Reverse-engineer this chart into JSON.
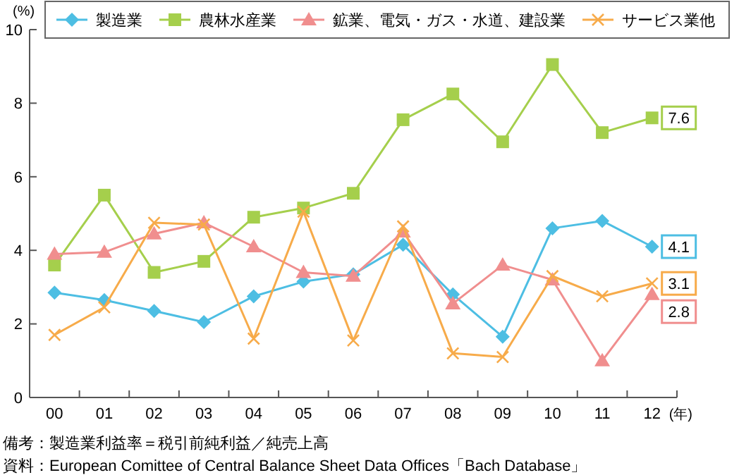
{
  "chart_data": {
    "type": "line",
    "ylabel": "(%)",
    "xlabel": "(年)",
    "categories": [
      "00",
      "01",
      "02",
      "03",
      "04",
      "05",
      "06",
      "07",
      "08",
      "09",
      "10",
      "11",
      "12"
    ],
    "ylim": [
      0,
      10
    ],
    "yticks": [
      0,
      2,
      4,
      6,
      8,
      10
    ],
    "grid": false,
    "legend": "top",
    "line_style": "solid",
    "series": [
      {
        "name": "製造業",
        "color": "#4dbee3",
        "marker": "diamond",
        "values": [
          2.85,
          2.65,
          2.35,
          2.05,
          2.75,
          3.15,
          3.35,
          4.15,
          2.8,
          1.65,
          4.6,
          4.8,
          4.1
        ],
        "value_labels": [
          null,
          null,
          null,
          null,
          null,
          null,
          null,
          null,
          null,
          null,
          null,
          null,
          "4.1"
        ]
      },
      {
        "name": "農林水産業",
        "color": "#a5cf4c",
        "marker": "square",
        "values": [
          3.6,
          5.5,
          3.4,
          3.7,
          4.9,
          5.15,
          5.55,
          7.55,
          8.25,
          6.95,
          9.05,
          7.2,
          7.6
        ],
        "value_labels": [
          null,
          null,
          null,
          null,
          null,
          null,
          null,
          null,
          null,
          null,
          null,
          null,
          "7.6"
        ]
      },
      {
        "name": "鉱業、電気・ガス・水道、建設業",
        "color": "#f08e8e",
        "marker": "triangle",
        "values": [
          3.9,
          3.95,
          4.45,
          4.75,
          4.1,
          3.4,
          3.3,
          4.5,
          2.55,
          3.6,
          3.2,
          1.0,
          2.8
        ],
        "value_labels": [
          null,
          null,
          null,
          null,
          null,
          null,
          null,
          null,
          null,
          null,
          null,
          null,
          "2.8"
        ]
      },
      {
        "name": "サービス業他",
        "color": "#f7ab4a",
        "marker": "cross",
        "values": [
          1.7,
          2.45,
          4.75,
          4.7,
          1.6,
          5.05,
          1.55,
          4.65,
          1.2,
          1.1,
          3.3,
          2.75,
          3.1
        ],
        "value_labels": [
          null,
          null,
          null,
          null,
          null,
          null,
          null,
          null,
          null,
          null,
          null,
          null,
          "3.1"
        ]
      }
    ],
    "annotations": [
      "備考：製造業利益率＝税引前純利益／純売上高",
      "資料：European Comittee of Central Balance Sheet Data Offices「Bach Database」"
    ]
  }
}
